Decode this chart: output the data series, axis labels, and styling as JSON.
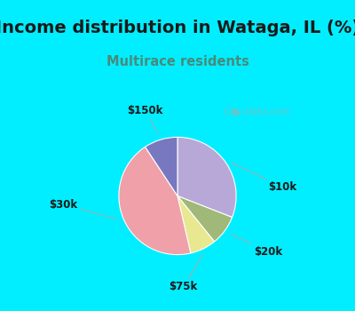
{
  "title": "Income distribution in Wataga, IL (%)",
  "subtitle": "Multirace residents",
  "title_color": "#1a1a1a",
  "subtitle_color": "#4a8a7a",
  "background_outer": "#00eeff",
  "background_inner_top": "#e8f5e8",
  "background_inner_bot": "#f8fef8",
  "slices": [
    {
      "label": "$10k",
      "value": 30,
      "color": "#b8a8d8"
    },
    {
      "label": "$20k",
      "value": 8,
      "color": "#a0b878"
    },
    {
      "label": "$75k",
      "value": 7,
      "color": "#e8e890"
    },
    {
      "label": "$30k",
      "value": 43,
      "color": "#f0a0a8"
    },
    {
      "label": "$150k",
      "value": 9,
      "color": "#7878c0"
    }
  ],
  "label_fontsize": 8.5,
  "title_fontsize": 14,
  "subtitle_fontsize": 10.5,
  "watermark": "City-Data.com",
  "startangle": 90
}
